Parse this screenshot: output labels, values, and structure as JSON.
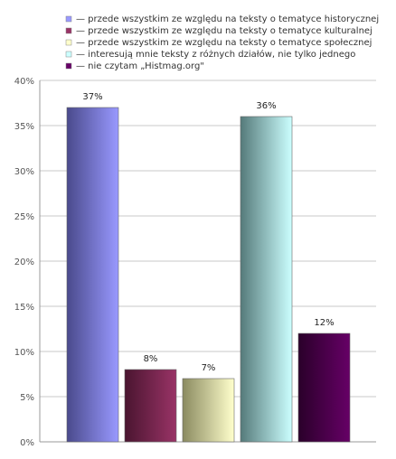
{
  "chart_data": {
    "type": "bar",
    "title": "",
    "xlabel": "",
    "ylabel": "",
    "ylim": [
      0,
      40
    ],
    "yticks": [
      0,
      5,
      10,
      15,
      20,
      25,
      30,
      35,
      40
    ],
    "ytick_suffix": "%",
    "grid": true,
    "legend_position": "top-right",
    "series": [
      {
        "name": "— przede wszystkim ze względu na teksty o tematyce historycznej",
        "value": 37,
        "label": "37%",
        "color": "#9999ff",
        "shade": "#4a4a8c"
      },
      {
        "name": "— przede wszystkim ze względu na teksty o tematyce kulturalnej",
        "value": 8,
        "label": "8%",
        "color": "#993366",
        "shade": "#4a1530"
      },
      {
        "name": "— przede wszystkim ze względu na teksty o tematyce społecznej",
        "value": 7,
        "label": "7%",
        "color": "#ffffcc",
        "shade": "#8a8a60"
      },
      {
        "name": "— interesują mnie teksty z różnych działów, nie tylko jednego",
        "value": 36,
        "label": "36%",
        "color": "#ccffff",
        "shade": "#557a7a"
      },
      {
        "name": "— nie czytam „Histmag.org\"",
        "value": 12,
        "label": "12%",
        "color": "#660066",
        "shade": "#2a002a"
      }
    ]
  }
}
